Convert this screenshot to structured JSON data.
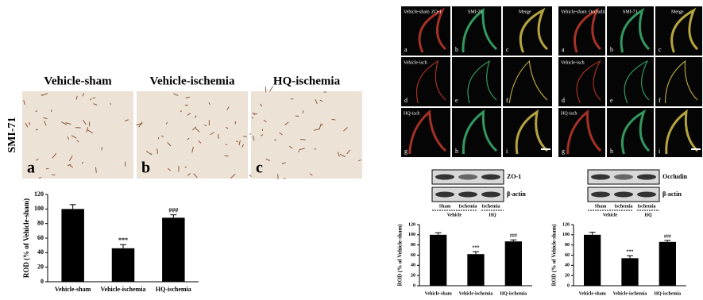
{
  "chart_data": [
    {
      "type": "bar",
      "ylabel": "ROD (% of Vehicle-sham)",
      "categories": [
        "Vehicle-sham",
        "Vehicle-ischemia",
        "HQ-ischemia"
      ],
      "values": [
        100,
        46,
        88
      ],
      "errors": [
        6,
        5,
        4
      ],
      "annotations": [
        null,
        "***",
        "###"
      ],
      "color": "#000000",
      "ylim": [
        0,
        120
      ],
      "yticks": [
        0,
        20,
        40,
        60,
        80,
        100,
        120
      ]
    },
    {
      "type": "bar",
      "ylabel": "ROD (% of Vehicle-sham)",
      "categories": [
        "Vehicle-sham",
        "Vehicle-ischemia",
        "HQ-ischemia"
      ],
      "values": [
        100,
        62,
        87
      ],
      "errors": [
        4,
        5,
        3
      ],
      "annotations": [
        null,
        "***",
        "###"
      ],
      "color": "#000000",
      "ylim": [
        0,
        120
      ],
      "yticks": [
        0,
        20,
        40,
        60,
        80,
        100,
        120
      ]
    },
    {
      "type": "bar",
      "ylabel": "ROD (% of Vehicle-sham)",
      "categories": [
        "Vehicle-sham",
        "Vehicle-ischemia",
        "HQ-ischemia"
      ],
      "values": [
        100,
        54,
        86
      ],
      "errors": [
        5,
        5,
        3
      ],
      "annotations": [
        null,
        "***",
        "###"
      ],
      "color": "#000000",
      "ylim": [
        0,
        120
      ],
      "yticks": [
        0,
        20,
        40,
        60,
        80,
        100,
        120
      ]
    }
  ],
  "figure": {
    "left": {
      "columns": [
        "Vehicle-sham",
        "Vehicle-ischemia",
        "HQ-ischemia"
      ],
      "row_label": "SMI-71",
      "letters": [
        "a",
        "b",
        "c"
      ]
    },
    "zo1": {
      "labels": [
        "Vehicle-sham",
        "ZO-1",
        "SMI-71",
        "Merge",
        "Vehicle-isch",
        "HQ-isch"
      ],
      "letters": [
        "a",
        "b",
        "c",
        "d",
        "e",
        "f",
        "g",
        "h",
        "i"
      ],
      "blot": {
        "bands": [
          "ZO-1",
          "β-actin"
        ],
        "lanes": [
          "Sham",
          "Ischemia",
          "Ischemia"
        ],
        "groups": [
          "Vehicle",
          "HQ"
        ]
      }
    },
    "occludin": {
      "labels": [
        "Vehicle-sham",
        "Occludin",
        "SMI-71",
        "Merge",
        "Vehicle-isch",
        "HQ-isch"
      ],
      "letters": [
        "a",
        "b",
        "c",
        "d",
        "e",
        "f",
        "g",
        "h",
        "i"
      ],
      "blot": {
        "bands": [
          "Occludin",
          "β-actin"
        ],
        "lanes": [
          "Sham",
          "Ischemia",
          "Ischemia"
        ],
        "groups": [
          "Vehicle",
          "HQ"
        ]
      }
    }
  }
}
